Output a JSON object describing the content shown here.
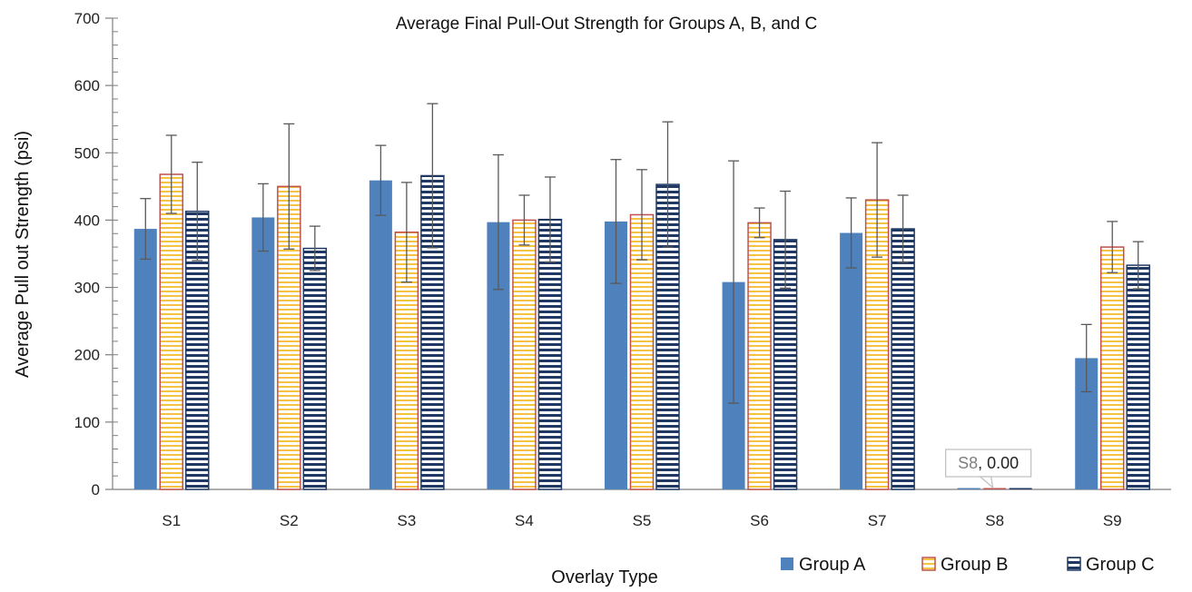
{
  "chart_data": {
    "type": "bar",
    "title": "Average Final Pull-Out Strength for Groups A, B, and C",
    "xlabel": "Overlay Type",
    "ylabel": "Average Pull out Strength (psi)",
    "ylim": [
      0,
      700
    ],
    "yticks": [
      0,
      100,
      200,
      300,
      400,
      500,
      600,
      700
    ],
    "categories": [
      "S1",
      "S2",
      "S3",
      "S4",
      "S5",
      "S6",
      "S7",
      "S8",
      "S9"
    ],
    "grid": false,
    "legend_position": "bottom-right",
    "series": [
      {
        "name": "Group A",
        "style": "solid",
        "color": "#4F81BD",
        "values": [
          387,
          404,
          459,
          397,
          398,
          308,
          381,
          0,
          195
        ],
        "errors": [
          45,
          50,
          52,
          100,
          92,
          180,
          52,
          0,
          50
        ]
      },
      {
        "name": "Group B",
        "style": "horizontal-stripes",
        "color": "#F5C242",
        "edge_color": "#C0504D",
        "values": [
          468,
          450,
          382,
          400,
          408,
          396,
          430,
          0,
          360
        ],
        "errors": [
          58,
          93,
          74,
          37,
          67,
          22,
          85,
          0,
          38
        ]
      },
      {
        "name": "Group C",
        "style": "horizontal-stripes",
        "color": "#1F3864",
        "edge_color": "#1F3864",
        "values": [
          413,
          358,
          466,
          401,
          453,
          371,
          387,
          0,
          333
        ],
        "errors": [
          73,
          33,
          107,
          63,
          93,
          72,
          50,
          0,
          35
        ]
      }
    ],
    "annotation": {
      "category": "S8",
      "series_label": "S8",
      "separator": ", ",
      "value_label": "0.00"
    }
  }
}
